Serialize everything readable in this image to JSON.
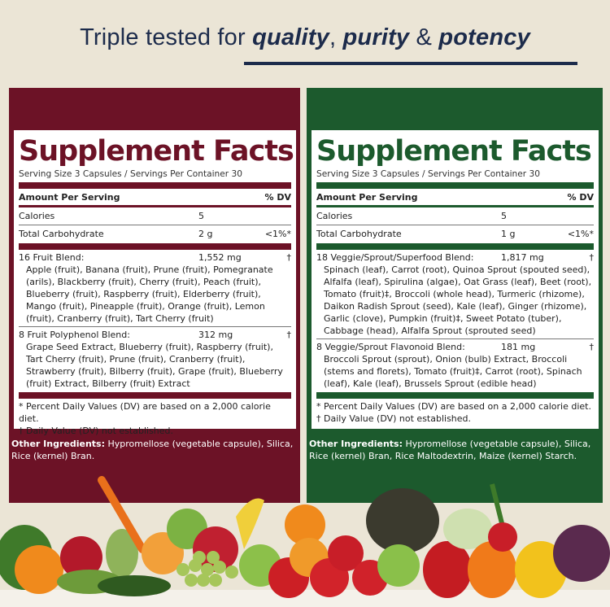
{
  "headline": {
    "prefix": "Triple tested for ",
    "w1": "quality",
    "sep1": ", ",
    "w2": "purity",
    "sep2": " & ",
    "w3": "potency"
  },
  "colors": {
    "navy": "#1c2b4b",
    "burgundy": "#6c1226",
    "green": "#1c5a2d",
    "background": "#ebe5d6"
  },
  "fruit_label": {
    "title": "Supplement Facts",
    "serving": "Serving Size 3 Capsules / Servings Per Container 30",
    "amount_header": "Amount Per Serving",
    "dv_header": "% DV",
    "calories": {
      "name": "Calories",
      "amount": "5",
      "dv": ""
    },
    "carbs": {
      "name": "Total Carbohydrate",
      "amount": "2 g",
      "dv": "<1%*"
    },
    "blends": [
      {
        "name": "16 Fruit Blend:",
        "amount": "1,552 mg",
        "dv": "†",
        "ingredients": "Apple (fruit), Banana (fruit), Prune (fruit), Pomegranate (arils), Blackberry (fruit), Cherry (fruit), Peach (fruit), Blueberry (fruit), Raspberry (fruit), Elderberry (fruit), Mango (fruit), Pineapple (fruit), Orange (fruit), Lemon (fruit), Cranberry (fruit), Tart Cherry (fruit)"
      },
      {
        "name": "8 Fruit Polyphenol Blend:",
        "amount": "312 mg",
        "dv": "†",
        "ingredients": "Grape Seed Extract, Blueberry (fruit), Raspberry (fruit), Tart Cherry (fruit), Prune (fruit), Cranberry (fruit), Strawberry (fruit), Bilberry (fruit), Grape (fruit), Blueberry (fruit) Extract, Bilberry (fruit) Extract"
      }
    ],
    "footnote1": "* Percent Daily Values (DV) are based on a 2,000 calorie diet.",
    "footnote2": "† Daily Value (DV) not established.",
    "other_label": "Other Ingredients:",
    "other_text": " Hypromellose (vegetable capsule), Silica, Rice (kernel) Bran."
  },
  "veggie_label": {
    "title": "Supplement Facts",
    "serving": "Serving Size 3 Capsules / Servings Per Container 30",
    "amount_header": "Amount Per Serving",
    "dv_header": "% DV",
    "calories": {
      "name": "Calories",
      "amount": "5",
      "dv": ""
    },
    "carbs": {
      "name": "Total Carbohydrate",
      "amount": "1 g",
      "dv": "<1%*"
    },
    "blends": [
      {
        "name": "18 Veggie/Sprout/Superfood Blend:",
        "amount": "1,817 mg",
        "dv": "†",
        "ingredients": "Spinach (leaf), Carrot (root), Quinoa Sprout (spouted seed), Alfalfa (leaf), Spirulina (algae), Oat Grass (leaf), Beet (root), Tomato (fruit)‡, Broccoli (whole head), Turmeric (rhizome), Daikon Radish Sprout (seed), Kale (leaf), Ginger (rhizome), Garlic (clove), Pumpkin (fruit)‡, Sweet Potato (tuber), Cabbage (head), Alfalfa Sprout (sprouted seed)"
      },
      {
        "name": "8 Veggie/Sprout Flavonoid Blend:",
        "amount": "181 mg",
        "dv": "†",
        "ingredients": "Broccoli Sprout (sprout), Onion (bulb) Extract, Broccoli (stems and florets), Tomato (fruit)‡, Carrot (root), Spinach (leaf), Kale (leaf), Brussels Sprout (edible head)"
      }
    ],
    "footnote1": "* Percent Daily Values (DV) are based on a 2,000 calorie diet.",
    "footnote2": "† Daily Value (DV) not established.",
    "other_label": "Other Ingredients:",
    "other_text": " Hypromellose (vegetable capsule), Silica, Rice (kernel) Bran, Rice Maltodextrin, Maize (kernel) Starch."
  }
}
